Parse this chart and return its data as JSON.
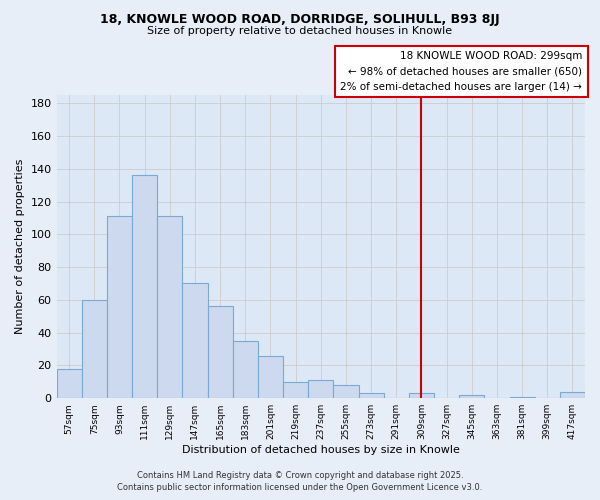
{
  "title": "18, KNOWLE WOOD ROAD, DORRIDGE, SOLIHULL, B93 8JJ",
  "subtitle": "Size of property relative to detached houses in Knowle",
  "xlabel": "Distribution of detached houses by size in Knowle",
  "ylabel": "Number of detached properties",
  "bar_labels": [
    "57sqm",
    "75sqm",
    "93sqm",
    "111sqm",
    "129sqm",
    "147sqm",
    "165sqm",
    "183sqm",
    "201sqm",
    "219sqm",
    "237sqm",
    "255sqm",
    "273sqm",
    "291sqm",
    "309sqm",
    "327sqm",
    "345sqm",
    "363sqm",
    "381sqm",
    "399sqm",
    "417sqm"
  ],
  "bar_values": [
    18,
    60,
    111,
    136,
    111,
    70,
    56,
    35,
    26,
    10,
    11,
    8,
    3,
    0,
    3,
    0,
    2,
    0,
    1,
    0,
    4
  ],
  "bar_color": "#ccd9ee",
  "bar_edge_color": "#7aaad4",
  "ylim": [
    0,
    185
  ],
  "yticks": [
    0,
    20,
    40,
    60,
    80,
    100,
    120,
    140,
    160,
    180
  ],
  "vline_x": 14.0,
  "vline_color": "#cc0000",
  "legend_title": "18 KNOWLE WOOD ROAD: 299sqm",
  "legend_line1": "← 98% of detached houses are smaller (650)",
  "legend_line2": "2% of semi-detached houses are larger (14) →",
  "footer1": "Contains HM Land Registry data © Crown copyright and database right 2025.",
  "footer2": "Contains public sector information licensed under the Open Government Licence v3.0.",
  "bg_color": "#e8eef8",
  "plot_bg_color_left": "#ffffff",
  "plot_bg_color_right": "#dce8f5",
  "grid_color": "#cccccc"
}
